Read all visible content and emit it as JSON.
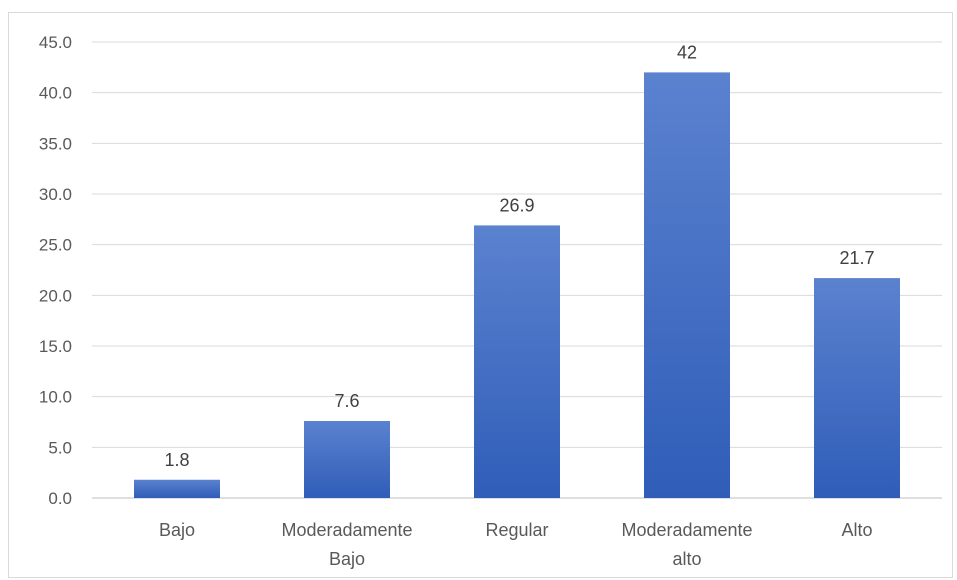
{
  "chart_data": {
    "type": "bar",
    "categories": [
      [
        "Bajo"
      ],
      [
        "Moderadamente",
        "Bajo"
      ],
      [
        "Regular"
      ],
      [
        "Moderadamente",
        "alto"
      ],
      [
        "Alto"
      ]
    ],
    "values": [
      1.8,
      7.6,
      26.9,
      42,
      21.7
    ],
    "data_labels": [
      "1.8",
      "7.6",
      "26.9",
      "42",
      "21.7"
    ],
    "ylim": [
      0,
      45
    ],
    "yticks": [
      "0.0",
      "5.0",
      "10.0",
      "15.0",
      "20.0",
      "25.0",
      "30.0",
      "35.0",
      "40.0",
      "45.0"
    ],
    "grid": true,
    "bar_color_top": "#5b82cf",
    "bar_color_bottom": "#2f5db8",
    "grid_color": "#d9d9d9",
    "title": "",
    "xlabel": "",
    "ylabel": ""
  }
}
